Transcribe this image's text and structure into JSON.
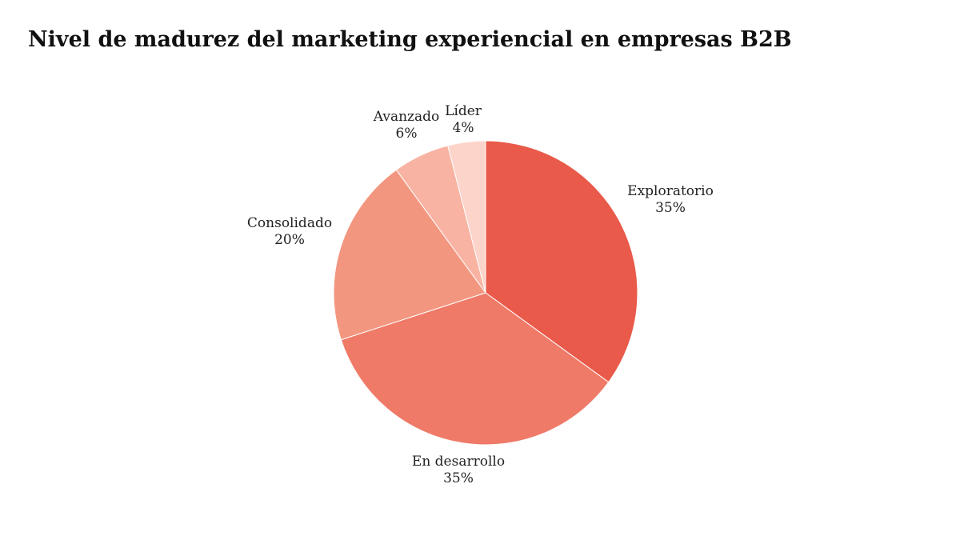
{
  "chart_data": {
    "type": "pie",
    "title": "Nivel de madurez del marketing experiencial en empresas B2B",
    "slices": [
      {
        "label": "Exploratorio",
        "value": 35,
        "value_label": "35%",
        "color": "#e95a4a"
      },
      {
        "label": "En desarrollo",
        "value": 35,
        "value_label": "35%",
        "color": "#ef7a68"
      },
      {
        "label": "Consolidado",
        "value": 20,
        "value_label": "20%",
        "color": "#f3967f"
      },
      {
        "label": "Avanzado",
        "value": 6,
        "value_label": "6%",
        "color": "#f8b3a2"
      },
      {
        "label": "Líder",
        "value": 4,
        "value_label": "4%",
        "color": "#fcd4ca"
      }
    ],
    "start_angle": "12 o'clock",
    "direction": "clockwise"
  }
}
